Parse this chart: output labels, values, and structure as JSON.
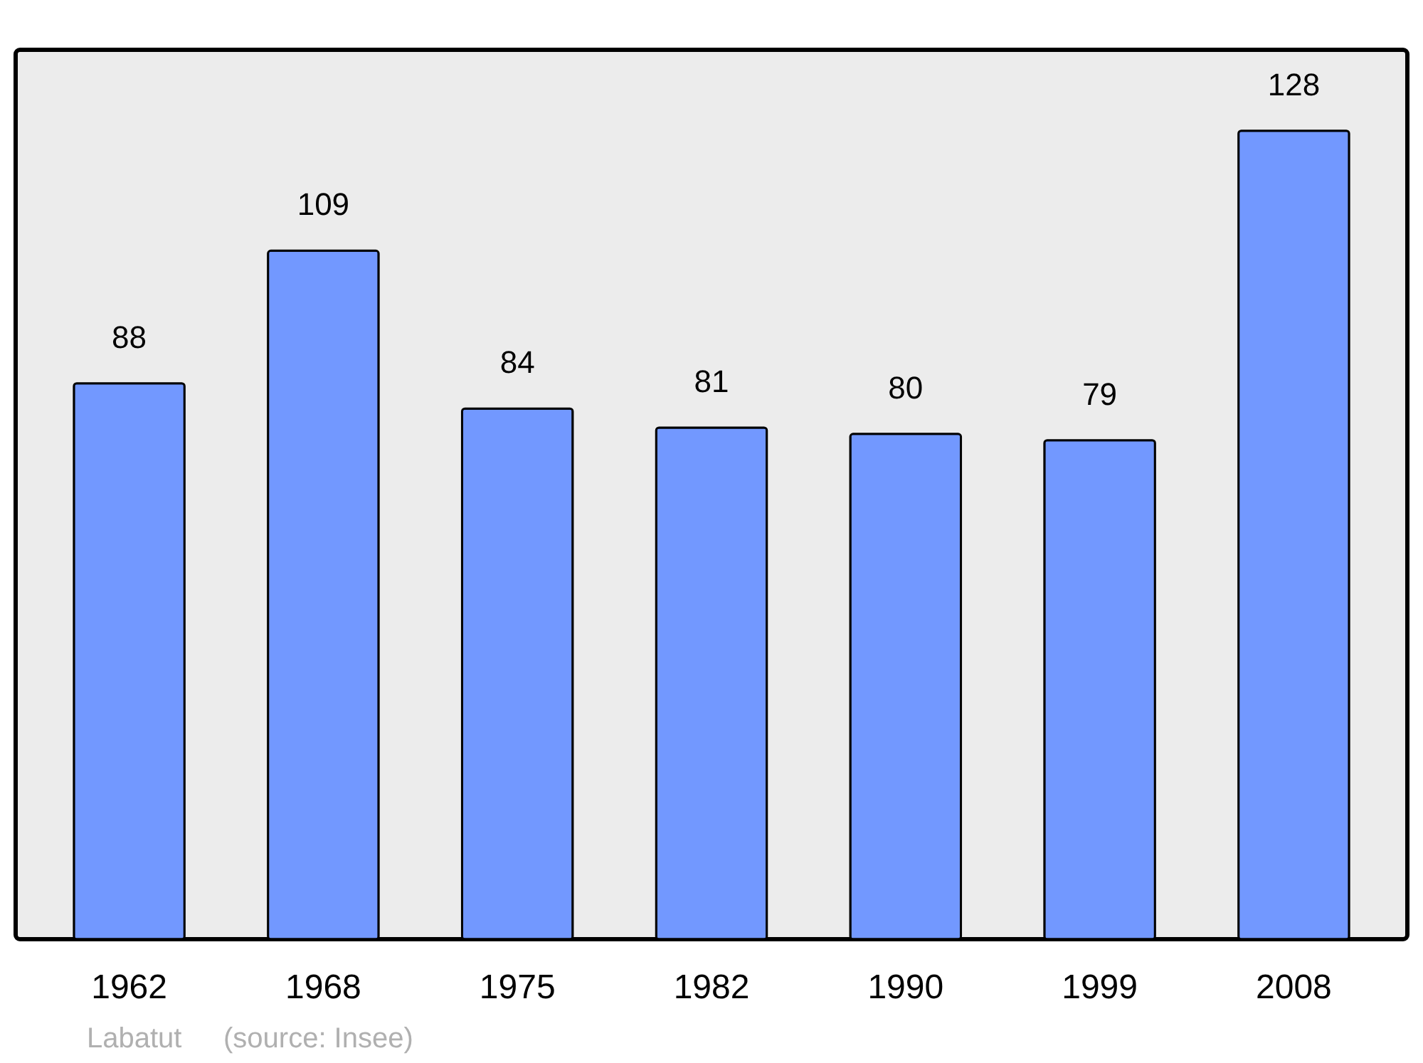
{
  "chart_data": {
    "type": "bar",
    "categories": [
      "1962",
      "1968",
      "1975",
      "1982",
      "1990",
      "1999",
      "2008"
    ],
    "values": [
      88,
      109,
      84,
      81,
      80,
      79,
      128
    ],
    "color": "#7298ff",
    "data_labels": true,
    "annotations": [
      "Labatut",
      "(source: Insee)"
    ]
  }
}
